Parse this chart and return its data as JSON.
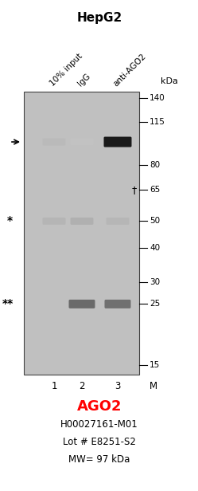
{
  "title": "HepG2",
  "title_fontsize": 11,
  "title_fontweight": "bold",
  "gene_label": "AGO2",
  "gene_label_color": "#ff0000",
  "gene_label_fontsize": 13,
  "gene_label_fontweight": "bold",
  "catalog": "H00027161-M01",
  "lot": "Lot # E8251-S2",
  "mw": "MW= 97 kDa",
  "info_fontsize": 8.5,
  "lane_labels": [
    "1",
    "2",
    "3",
    "M"
  ],
  "col_headers": [
    "10% input",
    "IgG",
    "anti-AGO2"
  ],
  "col_header_fontsize": 7.5,
  "kda_label": "kDa",
  "marker_values": [
    140,
    115,
    80,
    65,
    50,
    40,
    30,
    25,
    15
  ],
  "blot_bg": "#c0c0c0",
  "band_color_dark": "#111111",
  "band_color_medium": "#555555",
  "band_color_light": "#999999"
}
